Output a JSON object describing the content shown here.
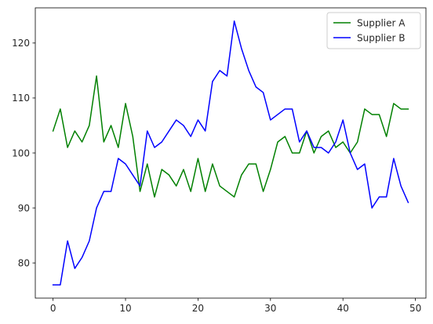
{
  "chart_data": {
    "type": "line",
    "title": "",
    "xlabel": "",
    "ylabel": "",
    "x": [
      0,
      1,
      2,
      3,
      4,
      5,
      6,
      7,
      8,
      9,
      10,
      11,
      12,
      13,
      14,
      15,
      16,
      17,
      18,
      19,
      20,
      21,
      22,
      23,
      24,
      25,
      26,
      27,
      28,
      29,
      30,
      31,
      32,
      33,
      34,
      35,
      36,
      37,
      38,
      39,
      40,
      41,
      42,
      43,
      44,
      45,
      46,
      47,
      48,
      49
    ],
    "series": [
      {
        "name": "Supplier A",
        "color": "#008000",
        "values": [
          104,
          108,
          101,
          104,
          102,
          105,
          114,
          102,
          105,
          101,
          109,
          103,
          93,
          98,
          92,
          97,
          96,
          94,
          97,
          93,
          99,
          93,
          98,
          94,
          93,
          92,
          96,
          98,
          98,
          93,
          97,
          102,
          103,
          100,
          100,
          104,
          100,
          103,
          104,
          101,
          102,
          100,
          102,
          108,
          107,
          107,
          103,
          109,
          108,
          108
        ]
      },
      {
        "name": "Supplier B",
        "color": "#0000ff",
        "values": [
          76,
          76,
          84,
          79,
          81,
          84,
          90,
          93,
          93,
          99,
          98,
          96,
          94,
          104,
          101,
          102,
          104,
          106,
          105,
          103,
          106,
          104,
          113,
          115,
          114,
          124,
          119,
          115,
          112,
          111,
          106,
          107,
          108,
          108,
          102,
          104,
          101,
          101,
          100,
          102,
          106,
          100,
          97,
          98,
          90,
          92,
          92,
          99,
          94,
          91
        ]
      }
    ],
    "xlim": [
      -2.45,
      51.45
    ],
    "ylim": [
      73.6,
      126.4
    ],
    "xticks": [
      0,
      10,
      20,
      30,
      40,
      50
    ],
    "yticks": [
      80,
      90,
      100,
      110,
      120
    ],
    "grid": false,
    "legend_position": "top-right"
  }
}
